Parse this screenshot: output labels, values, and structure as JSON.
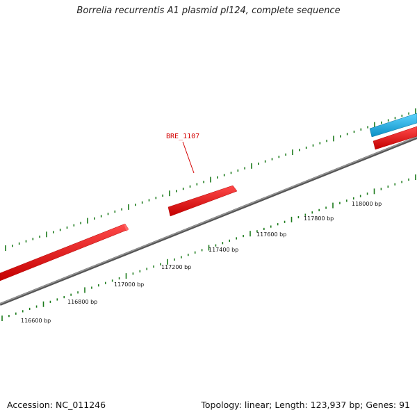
{
  "title": "Borrelia recurrentis A1 plasmid pl124, complete sequence",
  "accession_text": "Accession: NC_011246",
  "summary_text": "Topology: linear; Length: 123,937 bp; Genes: 91",
  "gene_label": "BRE_1107",
  "ruler_labels": [
    "116600 bp",
    "116800 bp",
    "117000 bp",
    "117200 bp",
    "117400 bp",
    "117600 bp",
    "117800 bp",
    "118000 bp"
  ],
  "colors": {
    "backbone": "#808080",
    "forward_gene": "#e60000",
    "reverse_gene": "#1ab2e6",
    "tick": "#1a7a1a",
    "label_red": "#d40000"
  }
}
